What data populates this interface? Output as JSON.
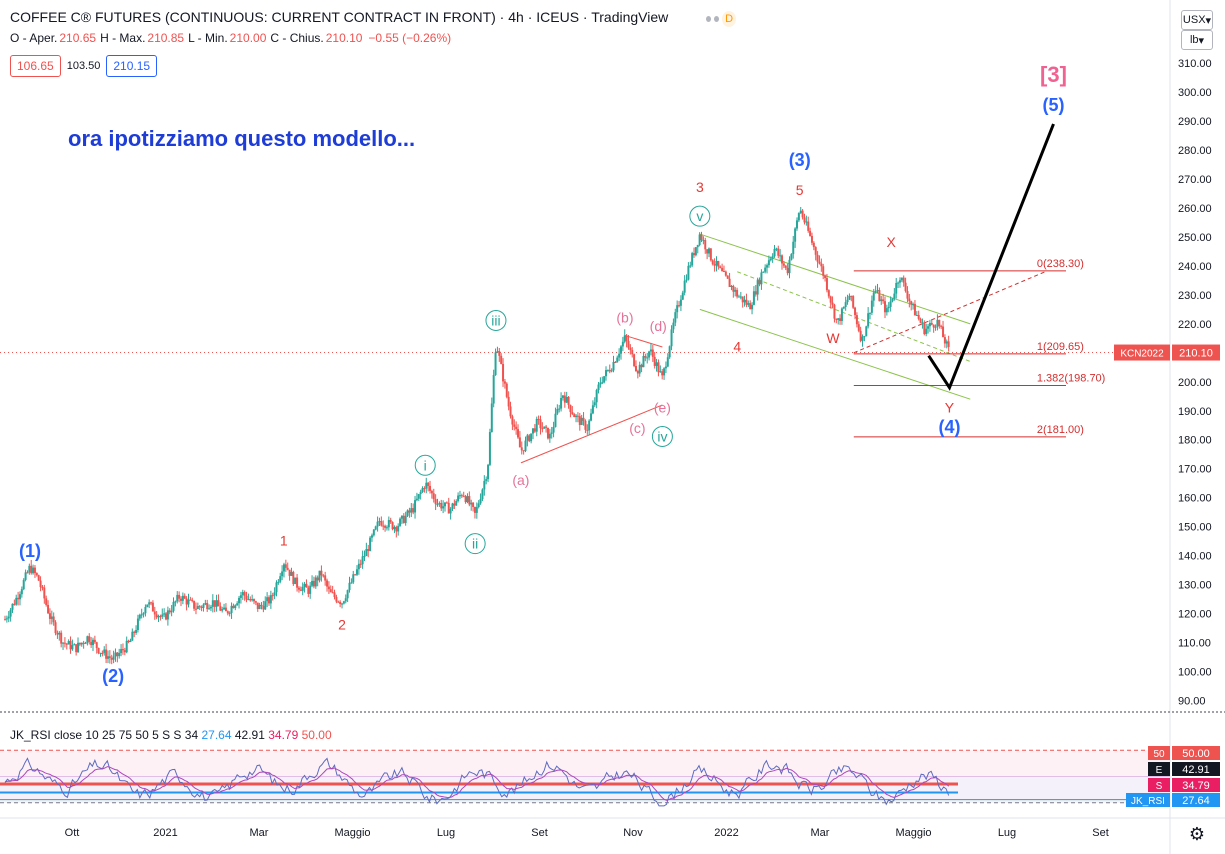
{
  "header": {
    "title": "COFFEE C® FUTURES (CONTINUOUS: CURRENT CONTRACT IN FRONT) · 4h · ICEUS · TradingView",
    "badge": "D",
    "ohlc": [
      {
        "label": "O - Aper.",
        "value": "210.65"
      },
      {
        "label": "H - Max.",
        "value": "210.85"
      },
      {
        "label": "L - Min.",
        "value": "210.00"
      },
      {
        "label": "C - Chius.",
        "value": "210.10"
      },
      {
        "label": "",
        "value": "−0.55 (−0.26%)"
      }
    ],
    "price_boxes": [
      "106.65",
      "103.50",
      "210.15"
    ]
  },
  "currency_select": "USX",
  "unit_select": "lb",
  "rsi_legend": {
    "name": "JK_RSI close 10 25 75 50 5 S S 34",
    "values": [
      "27.64",
      "42.91",
      "34.79",
      "50.00"
    ]
  },
  "rsi_tags": [
    {
      "key": "50",
      "value": "50.00",
      "color": "#ef5350"
    },
    {
      "key": "E",
      "value": "42.91",
      "color": "#131722"
    },
    {
      "key": "S",
      "value": "34.79",
      "color": "#e91e63"
    },
    {
      "key": "JK_RSI",
      "value": "27.64",
      "color": "#2196f3"
    }
  ],
  "colors": {
    "up": "#26a69a",
    "down": "#ef5350",
    "wave_blue": "#2962ff",
    "wave_red": "#e53935",
    "wave_green": "#26a69a",
    "fib": "#d32f2f",
    "channel": "#8bc34a"
  },
  "chart_data": {
    "type": "candlestick",
    "symbol": "KCN2022",
    "last_price": 210.1,
    "y_ticks": [
      "90.00",
      "100.00",
      "110.00",
      "120.00",
      "130.00",
      "140.00",
      "150.00",
      "160.00",
      "170.00",
      "180.00",
      "190.00",
      "200.00",
      "210.00",
      "220.00",
      "230.00",
      "240.00",
      "250.00",
      "260.00",
      "270.00",
      "280.00",
      "290.00",
      "300.00",
      "310.00"
    ],
    "x_ticks": [
      "Ott",
      "2021",
      "Mar",
      "Maggio",
      "Lug",
      "Set",
      "Nov",
      "2022",
      "Mar",
      "Maggio",
      "Lug",
      "Set"
    ],
    "annotation_text": "ora ipotizziamo questo modello...",
    "price_path": [
      {
        "t": 0,
        "p": 118
      },
      {
        "t": 3,
        "p": 126
      },
      {
        "t": 6,
        "p": 136
      },
      {
        "t": 8,
        "p": 132
      },
      {
        "t": 11,
        "p": 118
      },
      {
        "t": 14,
        "p": 110
      },
      {
        "t": 17,
        "p": 108
      },
      {
        "t": 20,
        "p": 112
      },
      {
        "t": 23,
        "p": 107
      },
      {
        "t": 26,
        "p": 104
      },
      {
        "t": 30,
        "p": 110
      },
      {
        "t": 34,
        "p": 124
      },
      {
        "t": 38,
        "p": 118
      },
      {
        "t": 42,
        "p": 126
      },
      {
        "t": 46,
        "p": 122
      },
      {
        "t": 50,
        "p": 124
      },
      {
        "t": 53,
        "p": 120
      },
      {
        "t": 57,
        "p": 127
      },
      {
        "t": 61,
        "p": 122
      },
      {
        "t": 64,
        "p": 125
      },
      {
        "t": 67,
        "p": 138
      },
      {
        "t": 70,
        "p": 130
      },
      {
        "t": 73,
        "p": 128
      },
      {
        "t": 76,
        "p": 134
      },
      {
        "t": 78,
        "p": 127
      },
      {
        "t": 81,
        "p": 124
      },
      {
        "t": 84,
        "p": 133
      },
      {
        "t": 87,
        "p": 142
      },
      {
        "t": 90,
        "p": 152
      },
      {
        "t": 94,
        "p": 150
      },
      {
        "t": 98,
        "p": 156
      },
      {
        "t": 101,
        "p": 165
      },
      {
        "t": 104,
        "p": 158
      },
      {
        "t": 107,
        "p": 156
      },
      {
        "t": 110,
        "p": 162
      },
      {
        "t": 113,
        "p": 154
      },
      {
        "t": 116,
        "p": 170
      },
      {
        "t": 118,
        "p": 214
      },
      {
        "t": 121,
        "p": 192
      },
      {
        "t": 124,
        "p": 176
      },
      {
        "t": 128,
        "p": 186
      },
      {
        "t": 131,
        "p": 181
      },
      {
        "t": 134,
        "p": 196
      },
      {
        "t": 137,
        "p": 188
      },
      {
        "t": 140,
        "p": 184
      },
      {
        "t": 143,
        "p": 200
      },
      {
        "t": 146,
        "p": 206
      },
      {
        "t": 149,
        "p": 215
      },
      {
        "t": 152,
        "p": 204
      },
      {
        "t": 155,
        "p": 211
      },
      {
        "t": 158,
        "p": 201
      },
      {
        "t": 161,
        "p": 222
      },
      {
        "t": 164,
        "p": 238
      },
      {
        "t": 167,
        "p": 251
      },
      {
        "t": 170,
        "p": 242
      },
      {
        "t": 173,
        "p": 236
      },
      {
        "t": 176,
        "p": 230
      },
      {
        "t": 179,
        "p": 226
      },
      {
        "t": 182,
        "p": 238
      },
      {
        "t": 185,
        "p": 246
      },
      {
        "t": 188,
        "p": 238
      },
      {
        "t": 191,
        "p": 260
      },
      {
        "t": 194,
        "p": 248
      },
      {
        "t": 197,
        "p": 236
      },
      {
        "t": 200,
        "p": 220
      },
      {
        "t": 203,
        "p": 230
      },
      {
        "t": 206,
        "p": 214
      },
      {
        "t": 209,
        "p": 232
      },
      {
        "t": 212,
        "p": 224
      },
      {
        "t": 215,
        "p": 237
      },
      {
        "t": 218,
        "p": 226
      },
      {
        "t": 221,
        "p": 218
      },
      {
        "t": 224,
        "p": 221
      },
      {
        "t": 227,
        "p": 210
      }
    ],
    "wave_labels": [
      {
        "text": "(1)",
        "t": 6,
        "p": 136,
        "pos": "above",
        "color": "blue"
      },
      {
        "text": "(2)",
        "t": 26,
        "p": 104,
        "pos": "below",
        "color": "blue"
      },
      {
        "text": "1",
        "t": 67,
        "p": 140,
        "pos": "above",
        "color": "red"
      },
      {
        "text": "2",
        "t": 81,
        "p": 122,
        "pos": "below",
        "color": "red"
      },
      {
        "text": "i",
        "t": 101,
        "p": 166,
        "pos": "above",
        "color": "green_circle"
      },
      {
        "text": "ii",
        "t": 113,
        "p": 150,
        "pos": "below",
        "color": "green_circle"
      },
      {
        "text": "iii",
        "t": 118,
        "p": 216,
        "pos": "above",
        "color": "green_circle"
      },
      {
        "text": "(a)",
        "t": 124,
        "p": 172,
        "pos": "below",
        "color": "pink"
      },
      {
        "text": "(b)",
        "t": 149,
        "p": 217,
        "pos": "above",
        "color": "pink"
      },
      {
        "text": "(c)",
        "t": 152,
        "p": 190,
        "pos": "below",
        "color": "pink"
      },
      {
        "text": "(d)",
        "t": 157,
        "p": 214,
        "pos": "above",
        "color": "pink"
      },
      {
        "text": "(e)",
        "t": 158,
        "p": 197,
        "pos": "below",
        "color": "pink"
      },
      {
        "text": "iv",
        "t": 158,
        "p": 187,
        "pos": "below",
        "color": "green_circle"
      },
      {
        "text": "v",
        "t": 167,
        "p": 252,
        "pos": "above",
        "color": "green_circle"
      },
      {
        "text": "3",
        "t": 167,
        "p": 262,
        "pos": "above",
        "color": "red"
      },
      {
        "text": "4",
        "t": 176,
        "p": 218,
        "pos": "below",
        "color": "red"
      },
      {
        "text": "(3)",
        "t": 191,
        "p": 271,
        "pos": "above",
        "color": "blue"
      },
      {
        "text": "5",
        "t": 191,
        "p": 261,
        "pos": "above",
        "color": "red"
      },
      {
        "text": "X",
        "t": 213,
        "p": 243,
        "pos": "above",
        "color": "red"
      },
      {
        "text": "W",
        "t": 199,
        "p": 210,
        "pos": "above",
        "color": "red"
      },
      {
        "text": "Y",
        "t": 227,
        "p": 197,
        "pos": "below",
        "color": "red"
      },
      {
        "text": "(4)",
        "t": 227,
        "p": 190,
        "pos": "below",
        "color": "blue"
      },
      {
        "text": "(5)",
        "t": 252,
        "p": 290,
        "pos": "above",
        "color": "blue"
      },
      {
        "text": "[3]",
        "t": 252,
        "p": 300,
        "pos": "above",
        "color": "pink_bracket"
      }
    ],
    "fib_levels": [
      {
        "label": "0(238.30)",
        "p": 238.3
      },
      {
        "label": "1(209.65)",
        "p": 209.65
      },
      {
        "label": "1.382(198.70)",
        "p": 198.7
      },
      {
        "label": "2(181.00)",
        "p": 181.0
      }
    ],
    "projection": [
      {
        "t": 222,
        "p": 209
      },
      {
        "t": 227,
        "p": 198
      },
      {
        "t": 252,
        "p": 289
      }
    ]
  }
}
